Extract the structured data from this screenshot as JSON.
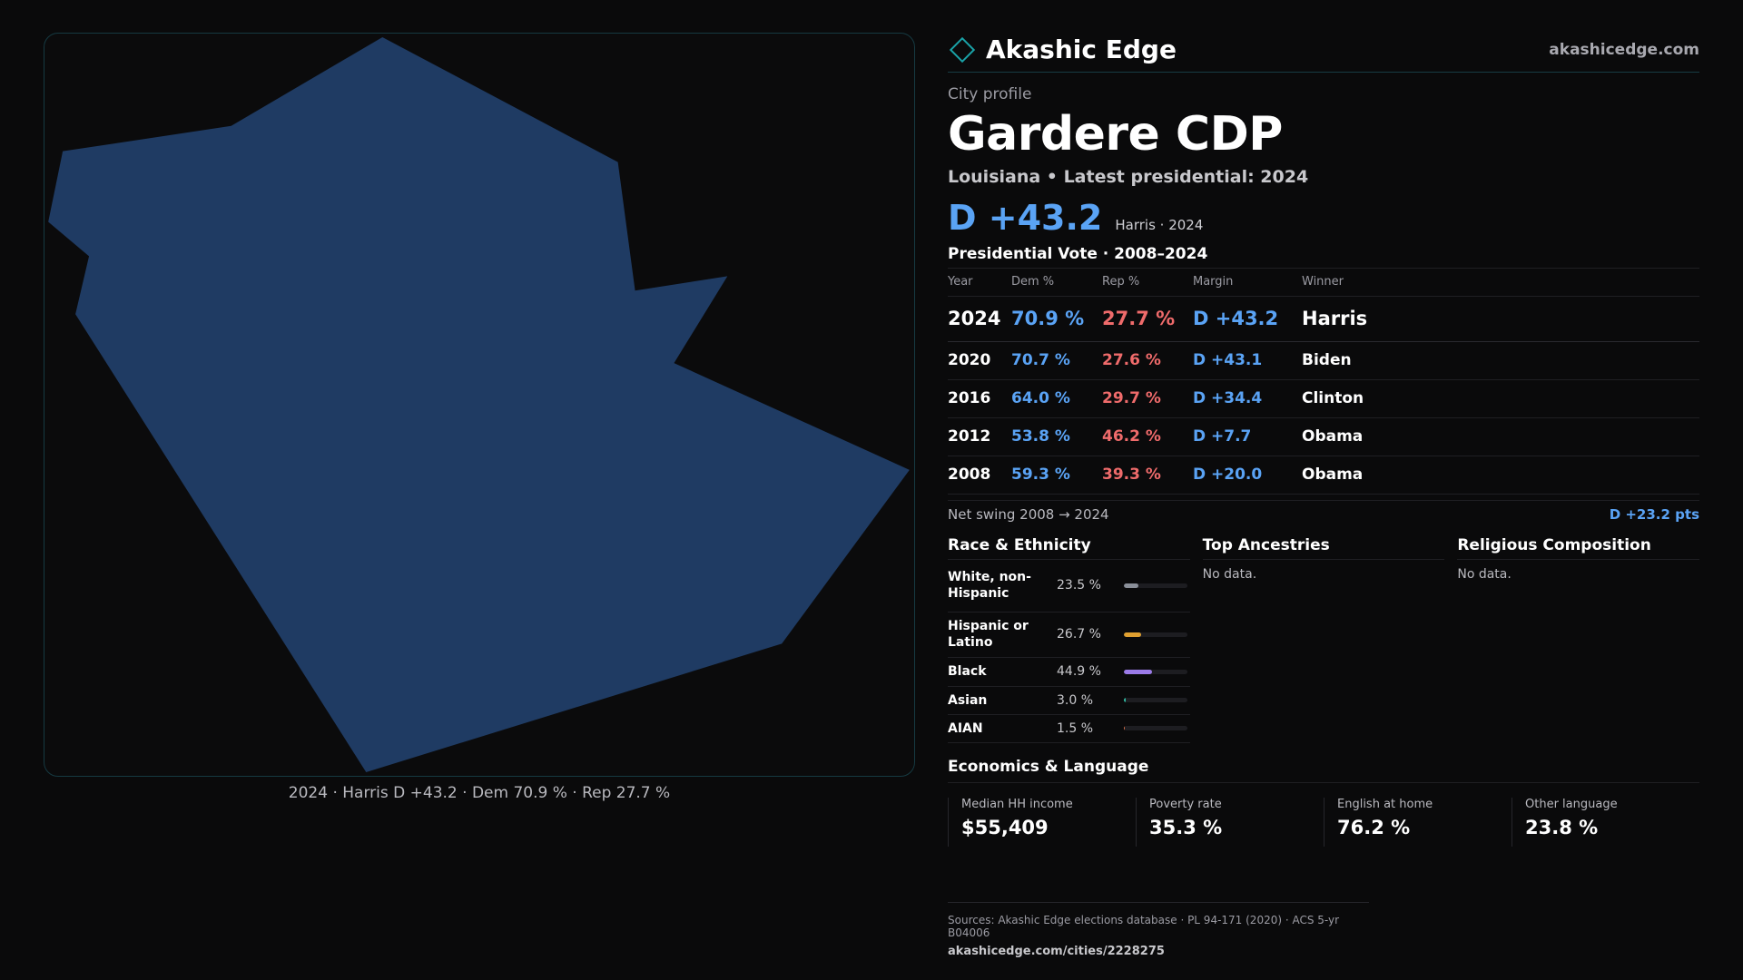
{
  "brand": {
    "name": "Akashic Edge",
    "url": "akashicedge.com",
    "logo_icon": "diamond-outline-icon",
    "accent": "#1aa3a8"
  },
  "map": {
    "caption": "2024 · Harris D +43.2 · Dem 70.9 % · Rep 27.7 %",
    "fill_color": "#1f3b63"
  },
  "profile": {
    "label": "City profile",
    "title": "Gardere CDP",
    "subtitle": "Louisiana • Latest presidential: 2024",
    "headline_margin": "D +43.2",
    "headline_note": "Harris · 2024"
  },
  "vote": {
    "title": "Presidential Vote · 2008–2024",
    "headers": {
      "year": "Year",
      "dem": "Dem %",
      "rep": "Rep %",
      "margin": "Margin",
      "winner": "Winner"
    },
    "rows": [
      {
        "year": "2024",
        "dem": "70.9 %",
        "rep": "27.7 %",
        "margin": "D +43.2",
        "winner": "Harris"
      },
      {
        "year": "2020",
        "dem": "70.7 %",
        "rep": "27.6 %",
        "margin": "D +43.1",
        "winner": "Biden"
      },
      {
        "year": "2016",
        "dem": "64.0 %",
        "rep": "29.7 %",
        "margin": "D +34.4",
        "winner": "Clinton"
      },
      {
        "year": "2012",
        "dem": "53.8 %",
        "rep": "46.2 %",
        "margin": "D +7.7",
        "winner": "Obama"
      },
      {
        "year": "2008",
        "dem": "59.3 %",
        "rep": "39.3 %",
        "margin": "D +20.0",
        "winner": "Obama"
      }
    ],
    "swing_label": "Net swing 2008 → 2024",
    "swing_value": "D +23.2 pts",
    "colors": {
      "dem": "#5aa3f5",
      "rep": "#ef6b6b"
    }
  },
  "race": {
    "title": "Race & Ethnicity",
    "rows": [
      {
        "label": "White, non-Hispanic",
        "value": "23.5 %",
        "pct": 23.5,
        "color": "#8a8f99"
      },
      {
        "label": "Hispanic or Latino",
        "value": "26.7 %",
        "pct": 26.7,
        "color": "#e0a030"
      },
      {
        "label": "Black",
        "value": "44.9 %",
        "pct": 44.9,
        "color": "#9b7be8"
      },
      {
        "label": "Asian",
        "value": "3.0 %",
        "pct": 3.0,
        "color": "#2fb8a0"
      },
      {
        "label": "AIAN",
        "value": "1.5 %",
        "pct": 1.5,
        "color": "#d6704a"
      }
    ]
  },
  "ancestries": {
    "title": "Top Ancestries",
    "empty": "No data."
  },
  "religion": {
    "title": "Religious Composition",
    "empty": "No data."
  },
  "economics": {
    "title": "Economics & Language",
    "cards": [
      {
        "label": "Median HH income",
        "value": "$55,409"
      },
      {
        "label": "Poverty rate",
        "value": "35.3 %"
      },
      {
        "label": "English at home",
        "value": "76.2 %"
      },
      {
        "label": "Other language",
        "value": "23.8 %"
      }
    ]
  },
  "footer": {
    "sources": "Sources: Akashic Edge elections database · PL 94-171 (2020) · ACS 5-yr B04006",
    "url": "akashicedge.com/cities/2228275"
  }
}
